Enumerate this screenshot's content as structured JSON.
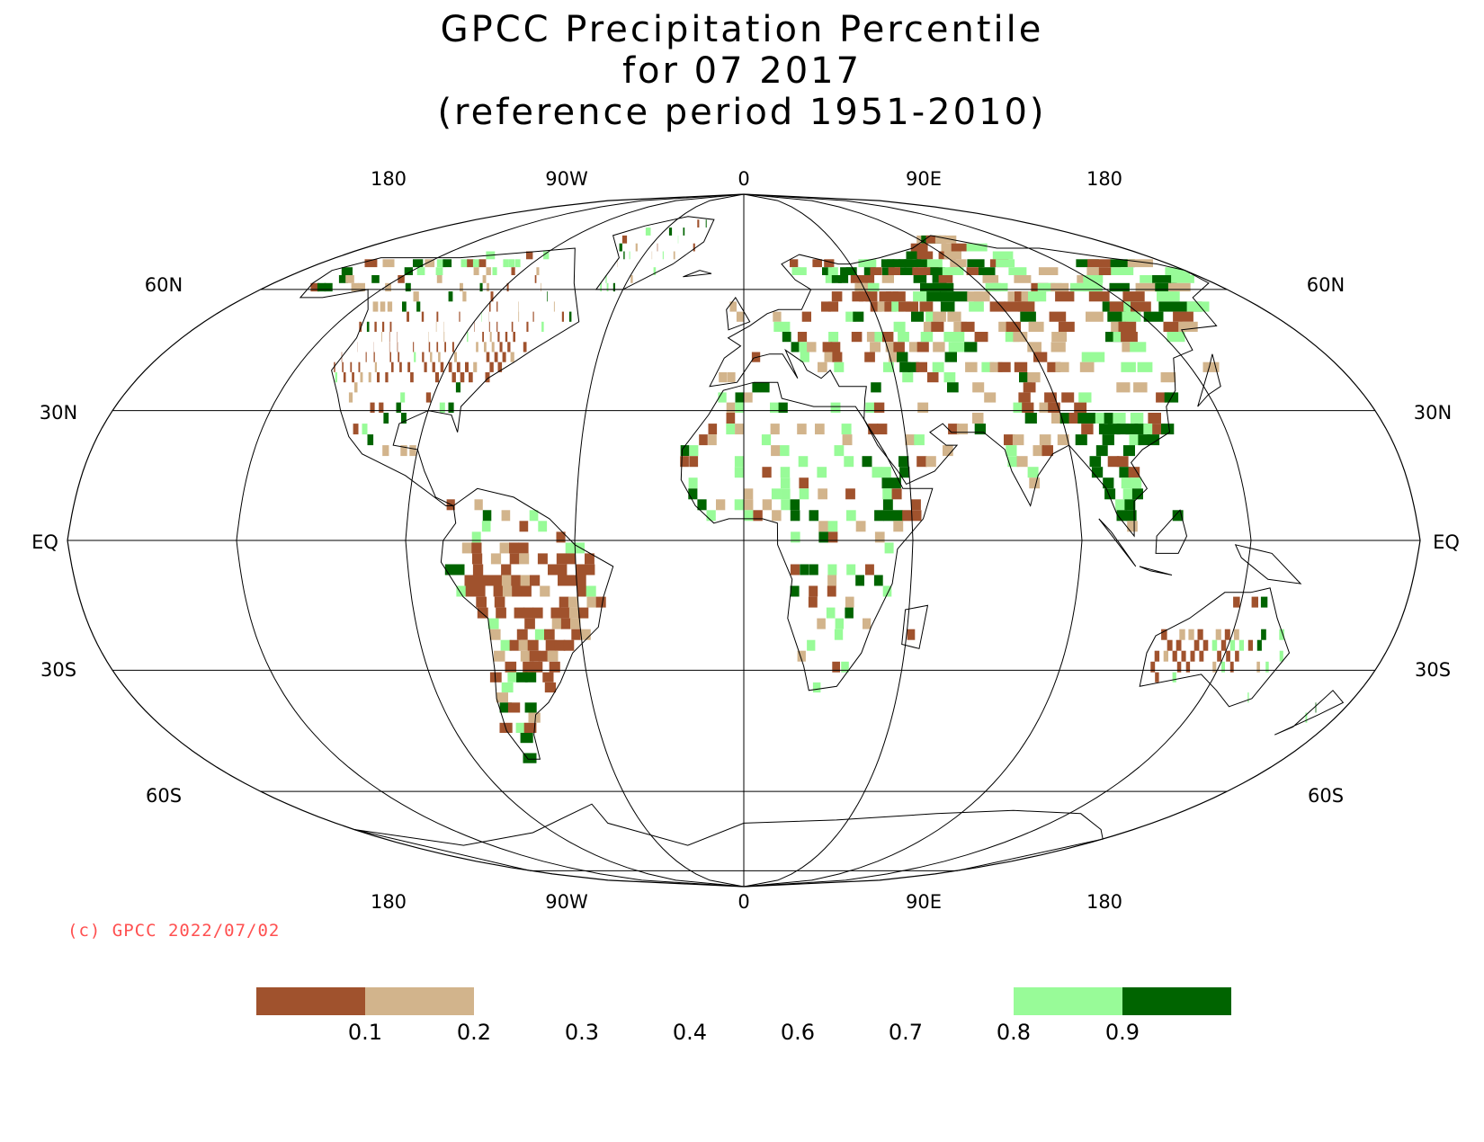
{
  "title": {
    "line1": "GPCC Precipitation Percentile",
    "line2": "for 07 2017",
    "line3": "(reference period 1951-2010)"
  },
  "map": {
    "projection": "Robinson-like",
    "center_lon": 0,
    "lon_labels": [
      "180",
      "90W",
      "0",
      "90E",
      "180"
    ],
    "lat_labels_left": [
      "60N",
      "30N",
      "EQ",
      "30S",
      "60S"
    ],
    "lat_labels_right": [
      "60N",
      "30N",
      "EQ",
      "30S",
      "60S"
    ],
    "lon_labels_bottom": [
      "180",
      "90W",
      "0",
      "90E",
      "180"
    ]
  },
  "copyright": "(c) GPCC 2022/07/02",
  "legend": {
    "tick_labels": [
      "0.1",
      "0.2",
      "0.3",
      "0.4",
      "0.6",
      "0.7",
      "0.8",
      "0.9"
    ],
    "colors": {
      "very_dry": "#a0522d",
      "dry": "#d2b48c",
      "wet": "#98fb98",
      "very_wet": "#006400"
    },
    "classes": [
      {
        "range": "< 0.1",
        "color": "#a0522d"
      },
      {
        "range": "0.1-0.2",
        "color": "#d2b48c"
      },
      {
        "range": "0.2-0.8",
        "color": "#ffffff"
      },
      {
        "range": "0.8-0.9",
        "color": "#98fb98"
      },
      {
        "range": "> 0.9",
        "color": "#006400"
      }
    ]
  }
}
